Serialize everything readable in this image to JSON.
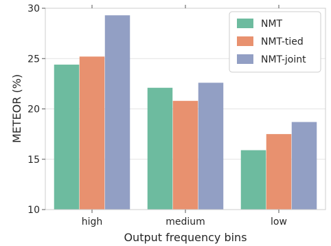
{
  "chart_data": {
    "type": "bar",
    "categories": [
      "high",
      "medium",
      "low"
    ],
    "series": [
      {
        "name": "NMT",
        "values": [
          24.4,
          22.1,
          15.9
        ],
        "color": "#6dbb9f"
      },
      {
        "name": "NMT-tied",
        "values": [
          25.2,
          20.8,
          17.5
        ],
        "color": "#e8916f"
      },
      {
        "name": "NMT-joint",
        "values": [
          29.3,
          22.6,
          18.7
        ],
        "color": "#929fc4"
      }
    ],
    "xlabel": "Output frequency bins",
    "ylabel": "METEOR (%)",
    "ylim": [
      10,
      30
    ],
    "yticks": [
      "10",
      "15",
      "20",
      "25",
      "30"
    ],
    "grid": "horizontal",
    "legend_position": "top-right"
  }
}
